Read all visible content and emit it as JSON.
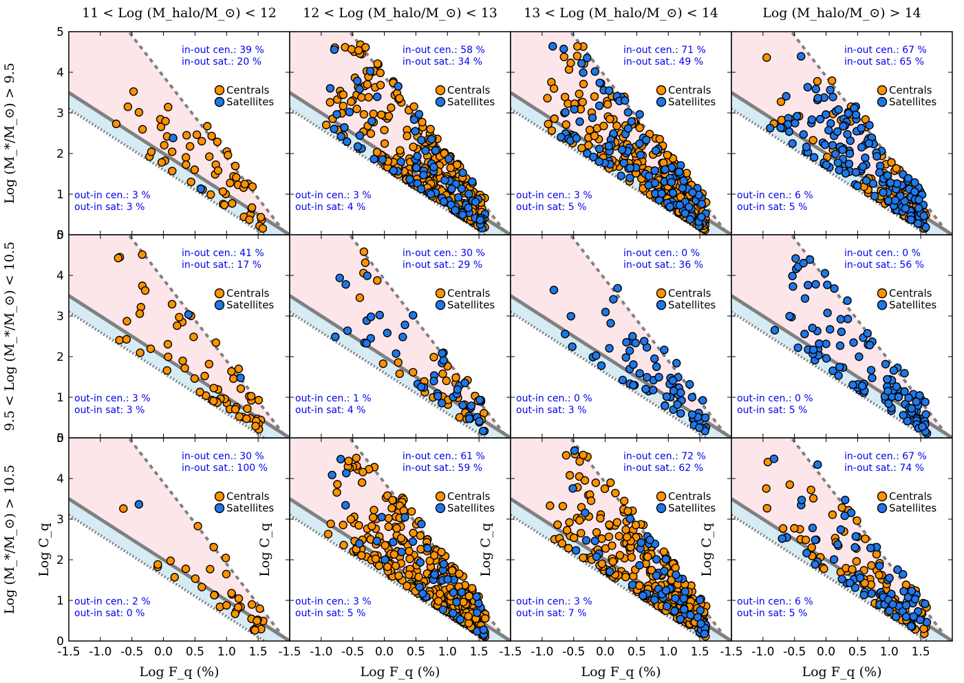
{
  "chart_data": {
    "type": "scatter",
    "column_titles": [
      "11 < Log (M_halo/M_⊙) < 12",
      "12 < Log (M_halo/M_⊙) < 13",
      "13 < Log (M_halo/M_⊙) < 14",
      "Log (M_halo/M_⊙) > 14"
    ],
    "row_labels": [
      "Log (M_*/M_⊙) > 9.5",
      "9.5 < Log (M_*/M_⊙) < 10.5",
      "Log (M_*/M_⊙) > 10.5"
    ],
    "xlabel": "Log F_q (%)",
    "ylabel": "Log C_q",
    "xlim": [
      -1.5,
      2.0
    ],
    "ylim": [
      0,
      5
    ],
    "xticks": [
      -1.5,
      -1.0,
      -0.5,
      0.0,
      0.5,
      1.0,
      1.5
    ],
    "yticks": [
      0,
      1,
      2,
      3,
      4,
      5
    ],
    "lines": {
      "solid": {
        "slope": -1.0,
        "intercept": 2.0
      },
      "lower_dotted": {
        "slope": -1.0,
        "intercept": 1.6
      },
      "upper_dashed": {
        "slope": -2.0,
        "intercept": 3.9
      }
    },
    "colors": {
      "centrals": "#ff9200",
      "satellites": "#1f77e8",
      "pink_region": "#fde6e9",
      "blue_region": "#d6ebf4",
      "line": "#808080",
      "annotation": "#0000ee"
    },
    "legend": {
      "placement": "upper-right",
      "entries": [
        "Centrals",
        "Satellites"
      ]
    },
    "panels": [
      {
        "row": 0,
        "col": 0,
        "in_out_cen": "39 %",
        "in_out_sat": "20 %",
        "out_in_cen": "3 %",
        "out_in_sat": "3 %",
        "centrals": 60,
        "satellites": 2
      },
      {
        "row": 0,
        "col": 1,
        "in_out_cen": "58 %",
        "in_out_sat": "34 %",
        "out_in_cen": "3 %",
        "out_in_sat": "4 %",
        "centrals": 300,
        "satellites": 80
      },
      {
        "row": 0,
        "col": 2,
        "in_out_cen": "71 %",
        "in_out_sat": "49 %",
        "out_in_cen": "3 %",
        "out_in_sat": "5 %",
        "centrals": 280,
        "satellites": 120
      },
      {
        "row": 0,
        "col": 3,
        "in_out_cen": "67 %",
        "in_out_sat": "65 %",
        "out_in_cen": "6 %",
        "out_in_sat": "5 %",
        "centrals": 80,
        "satellites": 150
      },
      {
        "row": 1,
        "col": 0,
        "in_out_cen": "41 %",
        "in_out_sat": "17 %",
        "out_in_cen": "3 %",
        "out_in_sat": "3 %",
        "centrals": 60,
        "satellites": 2
      },
      {
        "row": 1,
        "col": 1,
        "in_out_cen": "30 %",
        "in_out_sat": "29 %",
        "out_in_cen": "1 %",
        "out_in_sat": "4 %",
        "centrals": 35,
        "satellites": 45
      },
      {
        "row": 1,
        "col": 2,
        "in_out_cen": "0 %",
        "in_out_sat": "36 %",
        "out_in_cen": "0 %",
        "out_in_sat": "3 %",
        "centrals": 0,
        "satellites": 70
      },
      {
        "row": 1,
        "col": 3,
        "in_out_cen": "0 %",
        "in_out_sat": "56 %",
        "out_in_cen": "0 %",
        "out_in_sat": "5 %",
        "centrals": 0,
        "satellites": 110
      },
      {
        "row": 2,
        "col": 0,
        "in_out_cen": "30 %",
        "in_out_sat": "100 %",
        "out_in_cen": "2 %",
        "out_in_sat": "0 %",
        "centrals": 35,
        "satellites": 1
      },
      {
        "row": 2,
        "col": 1,
        "in_out_cen": "61 %",
        "in_out_sat": "59 %",
        "out_in_cen": "3 %",
        "out_in_sat": "5 %",
        "centrals": 300,
        "satellites": 40
      },
      {
        "row": 2,
        "col": 2,
        "in_out_cen": "72 %",
        "in_out_sat": "62 %",
        "out_in_cen": "3 %",
        "out_in_sat": "7 %",
        "centrals": 270,
        "satellites": 60
      },
      {
        "row": 2,
        "col": 3,
        "in_out_cen": "67 %",
        "in_out_sat": "74 %",
        "out_in_cen": "6 %",
        "out_in_sat": "5 %",
        "centrals": 80,
        "satellites": 70
      }
    ]
  },
  "text": {
    "in_out_cen": "in-out cen.: ",
    "in_out_sat": "in-out sat.: ",
    "out_in_cen": "out-in cen.: ",
    "out_in_sat": "out-in sat: ",
    "centrals": "Centrals",
    "satellites": "Satellites"
  }
}
